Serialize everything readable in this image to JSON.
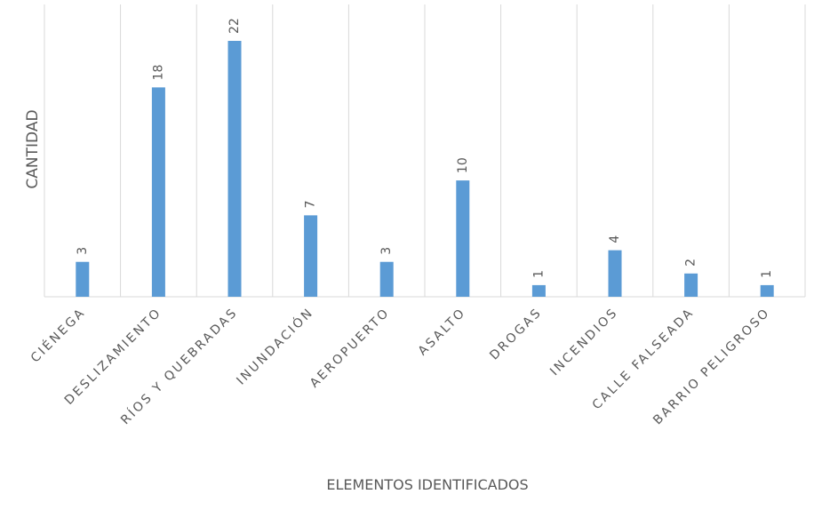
{
  "chart_data": {
    "type": "bar",
    "title": "",
    "xlabel": "ELEMENTOS IDENTIFICADOS",
    "ylabel": "CANTIDAD",
    "categories": [
      "CIÉNEGA",
      "DESLIZAMIENTO",
      "RÍOS Y QUEBRADAS",
      "INUNDACIÓN",
      "AEROPUERTO",
      "ASALTO",
      "DROGAS",
      "INCENDIOS",
      "CALLE FALSEADA",
      "BARRIO PELIGROSO"
    ],
    "values": [
      3,
      18,
      22,
      7,
      3,
      10,
      1,
      4,
      2,
      1
    ],
    "ylim": [
      0,
      22
    ],
    "grid": "vertical",
    "data_labels": true,
    "bar_color": "#5b9bd5",
    "grid_color": "#d9d9d9",
    "text_color": "#595959"
  }
}
